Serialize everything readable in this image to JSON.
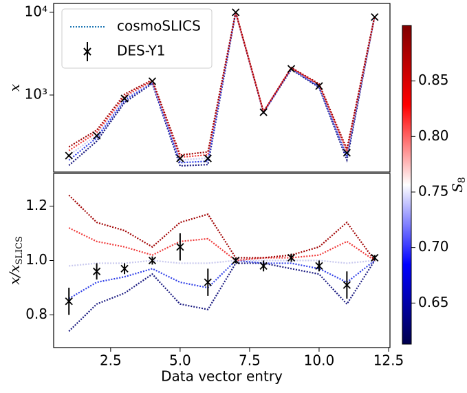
{
  "chart_data": [
    {
      "type": "line",
      "yscale": "log",
      "ylabel": "x",
      "x": [
        1,
        2,
        3,
        4,
        5,
        6,
        7,
        8,
        9,
        10,
        11,
        12
      ],
      "xlim": [
        0.45,
        12.55
      ],
      "ylim": [
        117,
        12800
      ],
      "yticks": [
        {
          "value": 1000,
          "label": "10³"
        },
        {
          "value": 10000,
          "label": "10⁴"
        }
      ],
      "legend": {
        "entries": [
          "cosmoSLICS",
          "DES-Y1"
        ],
        "corner": "upper left",
        "colors": [
          "#1f77b4",
          "#000000"
        ]
      },
      "series": [
        {
          "color": "#1a1a80",
          "values": [
            141,
            277,
            810,
            1378,
            139,
            144,
            9900,
            614,
            2037,
            1235,
            164,
            9000
          ]
        },
        {
          "color": "#3040e8",
          "values": [
            163,
            304,
            865,
            1407,
            152,
            158,
            10000,
            614,
            2079,
            1261,
            179,
            9000
          ]
        },
        {
          "color": "#c8c8ee",
          "values": [
            186,
            327,
            911,
            1450,
            163,
            173,
            10000,
            620,
            2100,
            1300,
            193,
            9000
          ]
        },
        {
          "color": "#f03a3a",
          "values": [
            213,
            353,
            966,
            1479,
            177,
            189,
            10000,
            626,
            2121,
            1326,
            209,
            9000
          ]
        },
        {
          "color": "#a00000",
          "values": [
            236,
            376,
            1021,
            1523,
            188,
            205,
            10100,
            626,
            2142,
            1365,
            222,
            9000
          ]
        },
        {
          "color": "#000000",
          "marker": "x",
          "values": [
            185,
            322,
            908,
            1468,
            171,
            171,
            10000,
            619,
            2073,
            1283,
            200,
            8770
          ]
        }
      ]
    },
    {
      "type": "line",
      "ylabel": "x/x",
      "ylabel_sub": "SLICS",
      "xlabel": "Data vector entry",
      "x": [
        1,
        2,
        3,
        4,
        5,
        6,
        7,
        8,
        9,
        10,
        11,
        12
      ],
      "xlim": [
        0.45,
        12.55
      ],
      "ylim": [
        0.68,
        1.32
      ],
      "xticks": [
        2.5,
        {
          "value": 5,
          "label": "5.0"
        },
        7.5,
        {
          "value": 10,
          "label": "10.0"
        },
        12.5
      ],
      "yticks": [
        0.8,
        {
          "value": 1,
          "label": "1.0"
        },
        1.2
      ],
      "series": [
        {
          "color": "#1a1a80",
          "values": [
            0.74,
            0.84,
            0.88,
            0.95,
            0.84,
            0.82,
            0.99,
            0.99,
            0.97,
            0.95,
            0.84,
            1.0
          ]
        },
        {
          "color": "#3040e8",
          "values": [
            0.86,
            0.92,
            0.94,
            0.97,
            0.92,
            0.9,
            1.0,
            0.99,
            0.99,
            0.97,
            0.92,
            1.0
          ]
        },
        {
          "color": "#c8c8ee",
          "values": [
            0.98,
            0.99,
            0.99,
            1.0,
            0.99,
            0.99,
            1.0,
            1.0,
            1.0,
            1.0,
            0.99,
            1.0
          ]
        },
        {
          "color": "#f03a3a",
          "values": [
            1.12,
            1.07,
            1.05,
            1.02,
            1.07,
            1.08,
            1.0,
            1.01,
            1.01,
            1.02,
            1.07,
            1.0
          ]
        },
        {
          "color": "#a00000",
          "values": [
            1.24,
            1.14,
            1.11,
            1.05,
            1.14,
            1.17,
            1.01,
            1.01,
            1.02,
            1.05,
            1.14,
            1.0
          ]
        },
        {
          "color": "#000000",
          "marker": "x",
          "values": [
            0.85,
            0.96,
            0.97,
            1.0,
            1.05,
            0.92,
            1.0,
            0.98,
            1.01,
            0.98,
            0.91,
            1.01
          ],
          "errors": [
            0.05,
            0.03,
            0.02,
            0.015,
            0.05,
            0.05,
            0.01,
            0.02,
            0.015,
            0.02,
            0.05,
            0.01
          ]
        }
      ]
    }
  ],
  "colorbar": {
    "label": "S",
    "label_sub": "8",
    "lim": [
      0.613,
      0.9
    ],
    "colormap": [
      "#00004c",
      "#0000ff",
      "#ffffff",
      "#ff0000",
      "#800000"
    ],
    "ticks": [
      0.65,
      {
        "value": 0.7,
        "label": "0.70"
      },
      0.75,
      {
        "value": 0.8,
        "label": "0.80"
      },
      0.85
    ]
  }
}
